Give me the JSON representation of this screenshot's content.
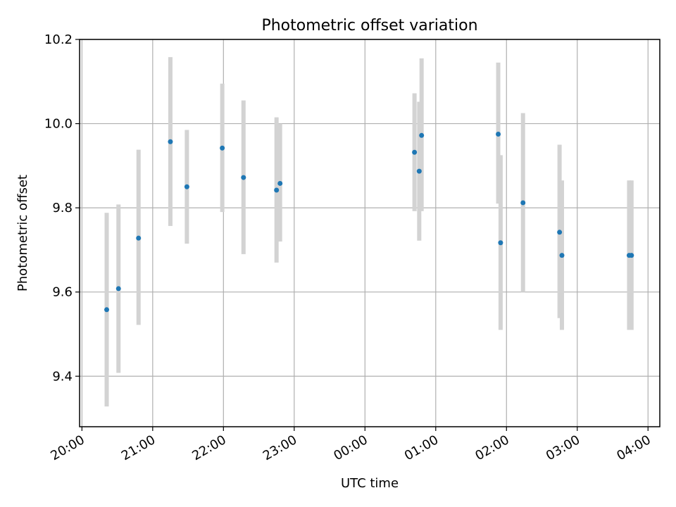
{
  "chart_data": {
    "type": "scatter",
    "title": "Photometric offset variation",
    "xlabel": "UTC time",
    "ylabel": "Photometric offset",
    "x_axis": "time",
    "xlim": [
      "19:58",
      "04:10"
    ],
    "ylim": [
      9.28,
      10.2
    ],
    "x_ticks": [
      "20:00",
      "21:00",
      "22:00",
      "23:00",
      "00:00",
      "01:00",
      "02:00",
      "03:00",
      "04:00"
    ],
    "y_ticks": [
      "9.4",
      "9.6",
      "9.8",
      "10.0",
      "10.2"
    ],
    "grid": true,
    "legend": "none",
    "colors": {
      "point": "#1f77b4",
      "errorbar": "#d3d3d3",
      "grid": "#b0b0b0"
    },
    "points": [
      {
        "x": "20:21",
        "y": 9.558,
        "ylow": 9.328,
        "yhigh": 9.788
      },
      {
        "x": "20:31",
        "y": 9.608,
        "ylow": 9.408,
        "yhigh": 9.808
      },
      {
        "x": "20:48",
        "y": 9.728,
        "ylow": 9.522,
        "yhigh": 9.938
      },
      {
        "x": "21:15",
        "y": 9.957,
        "ylow": 9.757,
        "yhigh": 10.158
      },
      {
        "x": "21:29",
        "y": 9.85,
        "ylow": 9.715,
        "yhigh": 9.985
      },
      {
        "x": "21:59",
        "y": 9.942,
        "ylow": 9.79,
        "yhigh": 10.095
      },
      {
        "x": "22:17",
        "y": 9.872,
        "ylow": 9.69,
        "yhigh": 10.055
      },
      {
        "x": "22:45",
        "y": 9.842,
        "ylow": 9.67,
        "yhigh": 10.015
      },
      {
        "x": "22:48",
        "y": 9.858,
        "ylow": 9.72,
        "yhigh": 10.0
      },
      {
        "x": "00:42",
        "y": 9.932,
        "ylow": 9.792,
        "yhigh": 10.072
      },
      {
        "x": "00:46",
        "y": 9.887,
        "ylow": 9.722,
        "yhigh": 10.052
      },
      {
        "x": "00:48",
        "y": 9.972,
        "ylow": 9.792,
        "yhigh": 10.155
      },
      {
        "x": "01:53",
        "y": 9.975,
        "ylow": 9.81,
        "yhigh": 10.145
      },
      {
        "x": "01:55",
        "y": 9.717,
        "ylow": 9.51,
        "yhigh": 9.925
      },
      {
        "x": "02:14",
        "y": 9.812,
        "ylow": 9.6,
        "yhigh": 10.025
      },
      {
        "x": "02:45",
        "y": 9.742,
        "ylow": 9.538,
        "yhigh": 9.95
      },
      {
        "x": "02:47",
        "y": 9.687,
        "ylow": 9.51,
        "yhigh": 9.865
      },
      {
        "x": "03:44",
        "y": 9.687,
        "ylow": 9.51,
        "yhigh": 9.865
      },
      {
        "x": "03:46",
        "y": 9.687,
        "ylow": 9.51,
        "yhigh": 9.865
      }
    ]
  }
}
